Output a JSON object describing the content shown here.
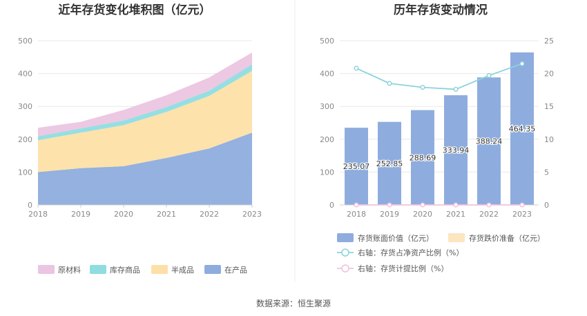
{
  "source_text": "数据来源：恒生聚源",
  "chart_data": [
    {
      "type": "area",
      "title": "近年存货变化堆积图（亿元）",
      "stacked": true,
      "x": [
        "2018",
        "2019",
        "2020",
        "2021",
        "2022",
        "2023"
      ],
      "ylim": [
        0,
        500
      ],
      "yticks": [
        "0",
        "100",
        "200",
        "300",
        "400",
        "500"
      ],
      "grid": true,
      "legend_position": "bottom",
      "series": [
        {
          "name": "在产品",
          "color": "#8eadde",
          "values": [
            100,
            112,
            118,
            143,
            172,
            220
          ]
        },
        {
          "name": "半成品",
          "color": "#fde0a8",
          "values": [
            97,
            108,
            125,
            140,
            160,
            188
          ]
        },
        {
          "name": "库存商品",
          "color": "#8fdde0",
          "values": [
            12,
            13,
            14,
            15,
            16,
            20
          ]
        },
        {
          "name": "原材料",
          "color": "#ebc5e2",
          "values": [
            26,
            20,
            32,
            36,
            40,
            36
          ]
        }
      ],
      "legend_order": [
        "原材料",
        "库存商品",
        "半成品",
        "在产品"
      ]
    },
    {
      "type": "bar",
      "title": "历年存货变动情况",
      "categories": [
        "2018",
        "2019",
        "2020",
        "2021",
        "2022",
        "2023"
      ],
      "ylim": [
        0,
        500
      ],
      "yticks": [
        "0",
        "100",
        "200",
        "300",
        "400",
        "500"
      ],
      "y2lim": [
        0,
        25
      ],
      "y2ticks": [
        "0",
        "5",
        "10",
        "15",
        "20",
        "25"
      ],
      "grid": true,
      "legend_position": "bottom",
      "series": [
        {
          "name": "存货账面价值（亿元）",
          "kind": "bar",
          "axis": "left",
          "color": "#8eadde",
          "values": [
            235.07,
            252.85,
            288.69,
            333.94,
            388.24,
            464.35
          ],
          "labels": [
            "235.07",
            "252.85",
            "288.69",
            "333.94",
            "388.24",
            "464.35"
          ]
        },
        {
          "name": "存货跌价准备（亿元）",
          "kind": "bar",
          "axis": "left",
          "color": "#fde5c0",
          "values": [
            0,
            0,
            0,
            0,
            0,
            0
          ]
        },
        {
          "name": "右轴：存货占净资产比例（%）",
          "kind": "line",
          "axis": "right",
          "color": "#8ad3dd",
          "values": [
            20.8,
            18.5,
            17.9,
            17.6,
            19.7,
            21.5
          ]
        },
        {
          "name": "右轴：存货计提比例（%）",
          "kind": "line",
          "axis": "right",
          "color": "#efc2dd",
          "values": [
            0,
            0,
            0,
            0,
            0,
            0
          ]
        }
      ]
    }
  ]
}
